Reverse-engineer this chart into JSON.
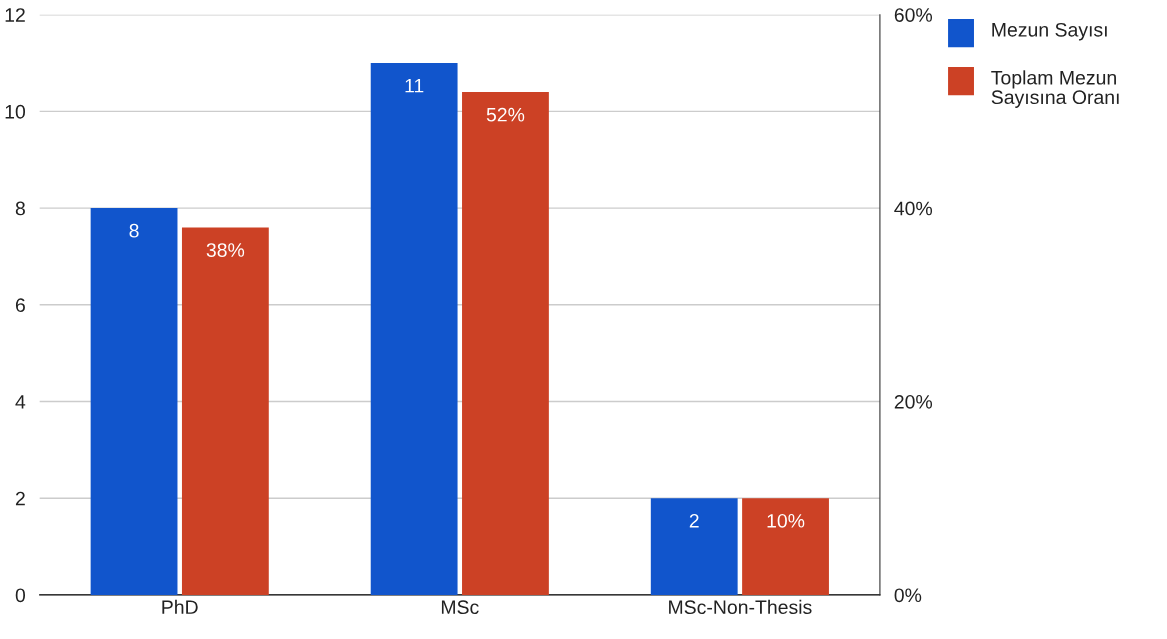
{
  "chart_data": {
    "type": "bar",
    "categories": [
      "PhD",
      "MSc",
      "MSc-Non-Thesis"
    ],
    "series": [
      {
        "name": "Mezun Sayısı",
        "color": "#1155cc",
        "values": [
          8,
          11,
          2
        ],
        "value_labels": [
          "8",
          "11",
          "2"
        ]
      },
      {
        "name": "Toplam Mezun Sayısına Oranı",
        "color": "#cc4125",
        "values": [
          38,
          52,
          10
        ],
        "value_labels": [
          "38%",
          "52%",
          "10%"
        ],
        "axis": "y2"
      }
    ],
    "ylim": [
      0,
      12
    ],
    "yticks": [
      0,
      2,
      4,
      6,
      8,
      10,
      12
    ],
    "y2lim": [
      0,
      60
    ],
    "y2ticks": [
      {
        "value": 0,
        "label": "0%"
      },
      {
        "value": 20,
        "label": "20%"
      },
      {
        "value": 40,
        "label": "40%"
      },
      {
        "value": 60,
        "label": "60%"
      }
    ],
    "grid": "y",
    "legend": "top right"
  }
}
